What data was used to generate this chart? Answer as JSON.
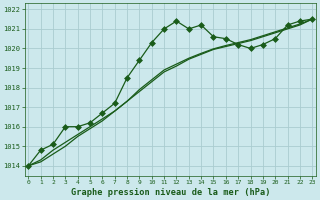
{
  "title": "Graphe pression niveau de la mer (hPa)",
  "background_color": "#cce8ec",
  "grid_color": "#aaccd0",
  "line_color": "#1a5c1a",
  "x_ticks": [
    0,
    1,
    2,
    3,
    4,
    5,
    6,
    7,
    8,
    9,
    10,
    11,
    12,
    13,
    14,
    15,
    16,
    17,
    18,
    19,
    20,
    21,
    22,
    23
  ],
  "xlim": [
    -0.3,
    23.3
  ],
  "ylim": [
    1013.5,
    1022.3
  ],
  "y_ticks": [
    1014,
    1015,
    1016,
    1017,
    1018,
    1019,
    1020,
    1021,
    1022
  ],
  "series1_x": [
    0,
    1,
    2,
    3,
    4,
    5,
    6,
    7,
    8,
    9,
    10,
    11,
    12,
    13,
    14,
    15,
    16,
    17,
    18,
    19,
    20,
    21,
    22,
    23
  ],
  "series1_y": [
    1014.0,
    1014.8,
    1015.1,
    1016.0,
    1016.0,
    1016.2,
    1016.7,
    1017.2,
    1018.5,
    1019.4,
    1020.3,
    1021.0,
    1021.4,
    1021.0,
    1021.2,
    1020.6,
    1020.5,
    1020.2,
    1020.0,
    1020.2,
    1020.5,
    1021.2,
    1021.4,
    1021.5
  ],
  "series2_x": [
    0,
    1,
    2,
    3,
    4,
    5,
    6,
    7,
    8,
    9,
    10,
    11,
    12,
    13,
    14,
    15,
    16,
    17,
    18,
    19,
    20,
    21,
    22,
    23
  ],
  "series2_y": [
    1014.0,
    1014.3,
    1014.8,
    1015.2,
    1015.6,
    1016.0,
    1016.4,
    1016.8,
    1017.3,
    1017.8,
    1018.3,
    1018.8,
    1019.1,
    1019.45,
    1019.7,
    1019.95,
    1020.1,
    1020.25,
    1020.4,
    1020.6,
    1020.8,
    1021.0,
    1021.2,
    1021.5
  ],
  "series3_x": [
    0,
    1,
    2,
    3,
    4,
    5,
    6,
    7,
    8,
    9,
    10,
    11,
    12,
    13,
    14,
    15,
    16,
    17,
    18,
    19,
    20,
    21,
    22,
    23
  ],
  "series3_y": [
    1014.0,
    1014.2,
    1014.6,
    1015.0,
    1015.5,
    1015.9,
    1016.3,
    1016.8,
    1017.3,
    1017.9,
    1018.4,
    1018.9,
    1019.2,
    1019.5,
    1019.75,
    1019.98,
    1020.15,
    1020.3,
    1020.45,
    1020.65,
    1020.85,
    1021.05,
    1021.25,
    1021.5
  ]
}
